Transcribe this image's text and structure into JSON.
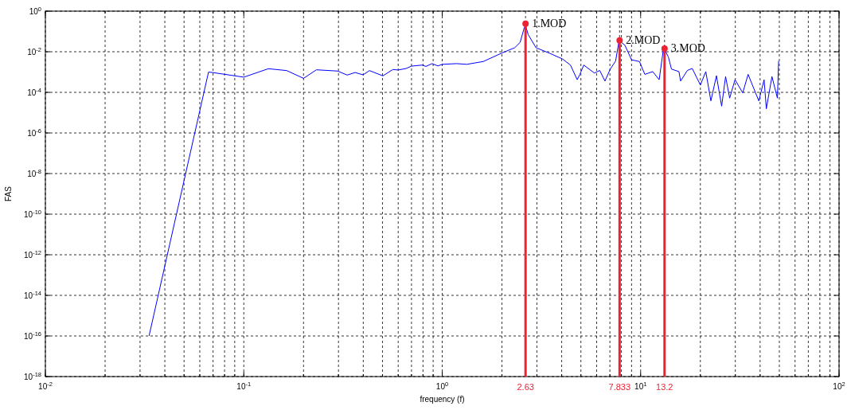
{
  "chart_data": {
    "type": "line",
    "xlabel": "frequency (f)",
    "ylabel": "FAS",
    "log": "xy",
    "grid": true,
    "xlim": [
      0.01,
      100
    ],
    "ylim": [
      1e-18,
      1
    ],
    "xticks": [
      {
        "value": 0.01,
        "label": "10$^{-2}$"
      },
      {
        "value": 0.02,
        "label": null
      },
      {
        "value": 0.03,
        "label": null
      },
      {
        "value": 0.04,
        "label": null
      },
      {
        "value": 0.05,
        "label": null
      },
      {
        "value": 0.06,
        "label": null
      },
      {
        "value": 0.07,
        "label": null
      },
      {
        "value": 0.08,
        "label": null
      },
      {
        "value": 0.09,
        "label": null
      },
      {
        "value": 0.1,
        "label": "10$^{-1}$"
      },
      {
        "value": 0.2,
        "label": null
      },
      {
        "value": 0.3,
        "label": null
      },
      {
        "value": 0.4,
        "label": null
      },
      {
        "value": 0.5,
        "label": null
      },
      {
        "value": 0.6,
        "label": null
      },
      {
        "value": 0.7,
        "label": null
      },
      {
        "value": 0.8,
        "label": null
      },
      {
        "value": 0.9,
        "label": null
      },
      {
        "value": 1,
        "label": "10$^{0}$"
      },
      {
        "value": 2,
        "label": null
      },
      {
        "value": 2.63,
        "label": "2.63"
      },
      {
        "value": 7.833,
        "label": "7.833"
      },
      {
        "value": 13.2,
        "label": "13.2"
      },
      {
        "value": 3,
        "label": null
      },
      {
        "value": 4,
        "label": null
      },
      {
        "value": 5,
        "label": null
      },
      {
        "value": 6,
        "label": null
      },
      {
        "value": 7,
        "label": null
      },
      {
        "value": 8,
        "label": null
      },
      {
        "value": 9,
        "label": null
      },
      {
        "value": 10,
        "label": "10$^{1}$"
      },
      {
        "value": 20,
        "label": null
      },
      {
        "value": 30,
        "label": null
      },
      {
        "value": 40,
        "label": null
      },
      {
        "value": 50,
        "label": null
      },
      {
        "value": 60,
        "label": null
      },
      {
        "value": 70,
        "label": null
      },
      {
        "value": 80,
        "label": null
      },
      {
        "value": 90,
        "label": null
      },
      {
        "value": 100,
        "label": "10$^{2}$"
      }
    ],
    "yticks": [
      {
        "value": 1e-18,
        "label": "10$^{-18}$"
      },
      {
        "value": 1e-16,
        "label": "10$^{-16}$"
      },
      {
        "value": 1e-14,
        "label": "10$^{-14}$"
      },
      {
        "value": 1e-12,
        "label": "10$^{-12}$"
      },
      {
        "value": 1e-10,
        "label": "10$^{-10}$"
      },
      {
        "value": 1e-08,
        "label": "10$^{-8}$"
      },
      {
        "value": 1e-06,
        "label": "10$^{-6}$"
      },
      {
        "value": 0.0001,
        "label": "10$^{-4}$"
      },
      {
        "value": 0.01,
        "label": "10$^{-2}$"
      },
      {
        "value": 1,
        "label": "10$^{0}$"
      }
    ],
    "series": [
      {
        "type": "line",
        "color": "#0000ff",
        "x": [
          0.0333,
          0.0664,
          0.0695,
          0.1,
          0.133,
          0.1646,
          0.2,
          0.2323,
          0.297,
          0.332,
          0.364,
          0.399,
          0.43,
          0.502,
          0.564,
          0.6,
          0.658,
          0.7,
          0.791,
          0.828,
          0.889,
          0.951,
          1.0,
          1.18,
          1.33,
          1.61,
          1.99,
          2.32,
          2.47,
          2.59,
          2.63,
          2.71,
          2.97,
          3.47,
          4.04,
          4.43,
          4.79,
          4.94,
          5.17,
          5.85,
          6.22,
          6.61,
          7.03,
          7.48,
          7.76,
          7.833,
          8.33,
          9.0,
          9.86,
          10.5,
          11.5,
          12.4,
          13.0,
          13.2,
          13.8,
          14.3,
          15.6,
          15.9,
          17.2,
          18.2,
          20.0,
          21.3,
          22.6,
          24.1,
          25.6,
          26.8,
          28.1,
          29.9,
          32.7,
          34.8,
          39.4,
          41.9,
          43.0,
          45.9,
          48.9,
          49.6
        ],
        "values": [
          1e-16,
          0.001,
          0.00095,
          0.00056,
          0.00146,
          0.00118,
          0.00049,
          0.00129,
          0.00112,
          0.00071,
          0.00095,
          0.00073,
          0.00118,
          0.00065,
          0.00133,
          0.00126,
          0.0015,
          0.00196,
          0.0022,
          0.0019,
          0.0026,
          0.002,
          0.0024,
          0.0026,
          0.0024,
          0.0033,
          0.0085,
          0.0158,
          0.029,
          0.15,
          0.2,
          0.071,
          0.0158,
          0.0085,
          0.0044,
          0.0022,
          0.00042,
          0.00077,
          0.0022,
          0.00089,
          0.0012,
          0.00036,
          0.0014,
          0.0035,
          0.029,
          0.034,
          0.021,
          0.004,
          0.0033,
          0.00077,
          0.00105,
          0.00042,
          0.0117,
          0.013,
          0.0055,
          0.0014,
          0.00105,
          0.00036,
          0.0012,
          0.0015,
          0.00023,
          0.00105,
          3.8e-05,
          0.00066,
          2.1e-05,
          0.0006,
          5.2e-05,
          0.00042,
          9.4e-05,
          0.00077,
          3.8e-05,
          0.00042,
          1.55e-05,
          0.0006,
          5.2e-05,
          0.0035
        ]
      },
      {
        "type": "lollipop",
        "color": "#ee2233",
        "marker": "circle",
        "x": [
          2.63,
          7.833,
          13.2
        ],
        "values": [
          0.24,
          0.036,
          0.0144
        ]
      }
    ],
    "annotations": [
      {
        "text": "1.MOD",
        "x": 2.63,
        "y": 0.24
      },
      {
        "text": "2.MOD",
        "x": 7.833,
        "y": 0.036
      },
      {
        "text": "3.MOD",
        "x": 13.2,
        "y": 0.0144
      }
    ]
  }
}
